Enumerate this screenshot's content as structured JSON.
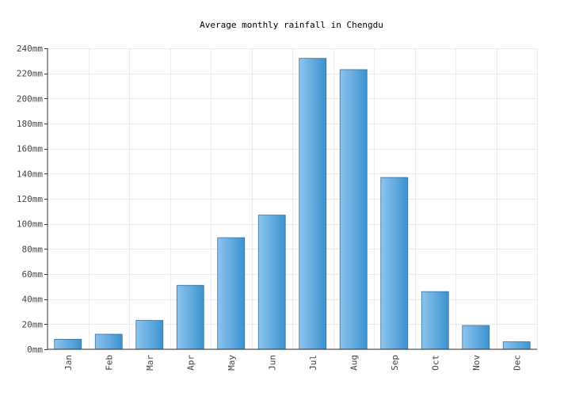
{
  "chart_data": {
    "type": "bar",
    "title": "Average monthly rainfall in Chengdu",
    "xlabel": "",
    "ylabel": "",
    "categories": [
      "Jan",
      "Feb",
      "Mar",
      "Apr",
      "May",
      "Jun",
      "Jul",
      "Aug",
      "Sep",
      "Oct",
      "Nov",
      "Dec"
    ],
    "values": [
      8,
      12,
      23,
      51,
      89,
      107,
      232,
      223,
      137,
      46,
      19,
      6
    ],
    "ylim": [
      0,
      240
    ],
    "yticks": [
      0,
      20,
      40,
      60,
      80,
      100,
      120,
      140,
      160,
      180,
      200,
      220,
      240
    ],
    "y_unit": "mm",
    "grid": true,
    "colors": {
      "bar_light": "#8cc4ee",
      "bar_dark": "#3b93d1",
      "bar_border": "#3f6f95"
    }
  }
}
